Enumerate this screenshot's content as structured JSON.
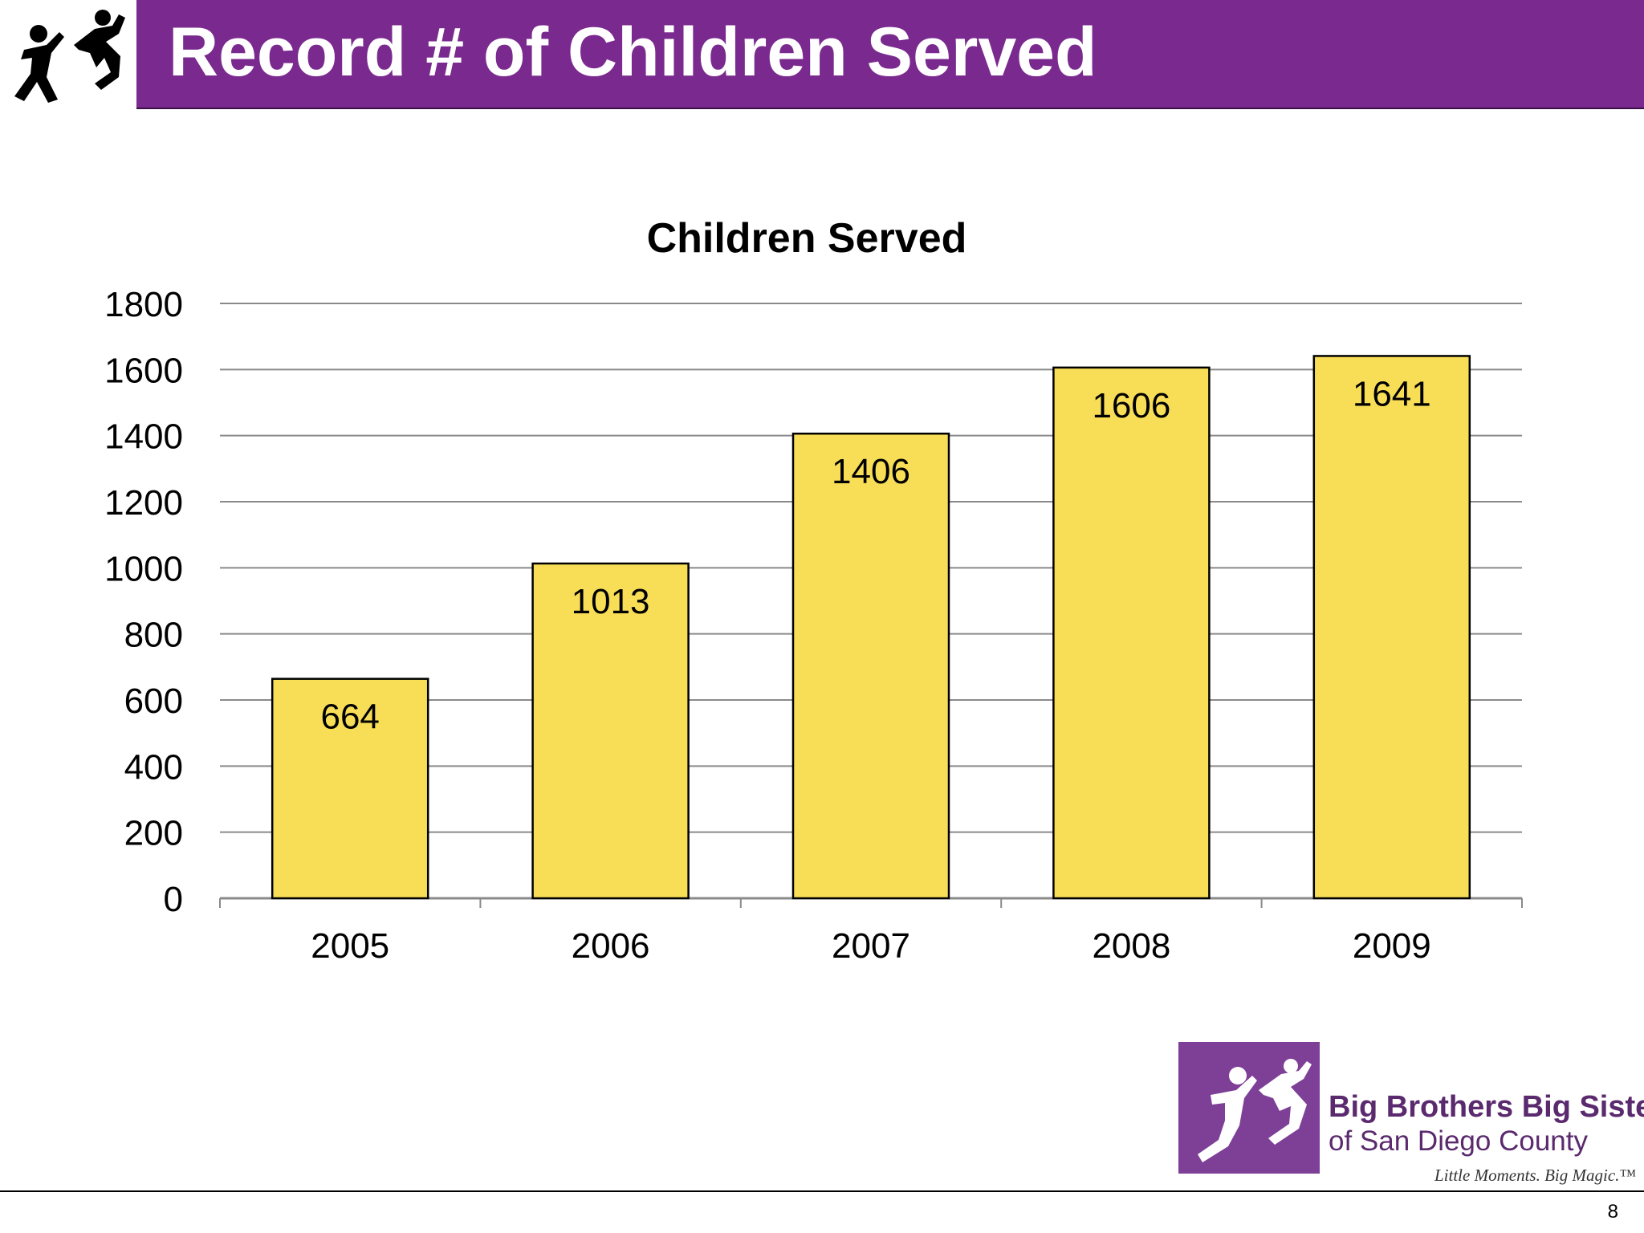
{
  "slide": {
    "title": "Record # of Children Served",
    "page_number": "8"
  },
  "brand": {
    "name": "Big Brothers Big Sisters",
    "subtitle": "of San Diego County",
    "tagline": "Little Moments. Big Magic.™",
    "accent_color": "#7a2a8e",
    "logo_icon": "bbbs-figures-logo"
  },
  "chart_data": {
    "type": "bar",
    "title": "Children Served",
    "categories": [
      "2005",
      "2006",
      "2007",
      "2008",
      "2009"
    ],
    "values": [
      664,
      1013,
      1406,
      1606,
      1641
    ],
    "data_labels": [
      "664",
      "1013",
      "1406",
      "1606",
      "1641"
    ],
    "ylim": [
      0,
      1800
    ],
    "yticks": [
      0,
      200,
      400,
      600,
      800,
      1000,
      1200,
      1400,
      1600,
      1800
    ],
    "xlabel": "",
    "ylabel": "",
    "grid": true,
    "legend": false,
    "bar_color": "#f8de57"
  }
}
